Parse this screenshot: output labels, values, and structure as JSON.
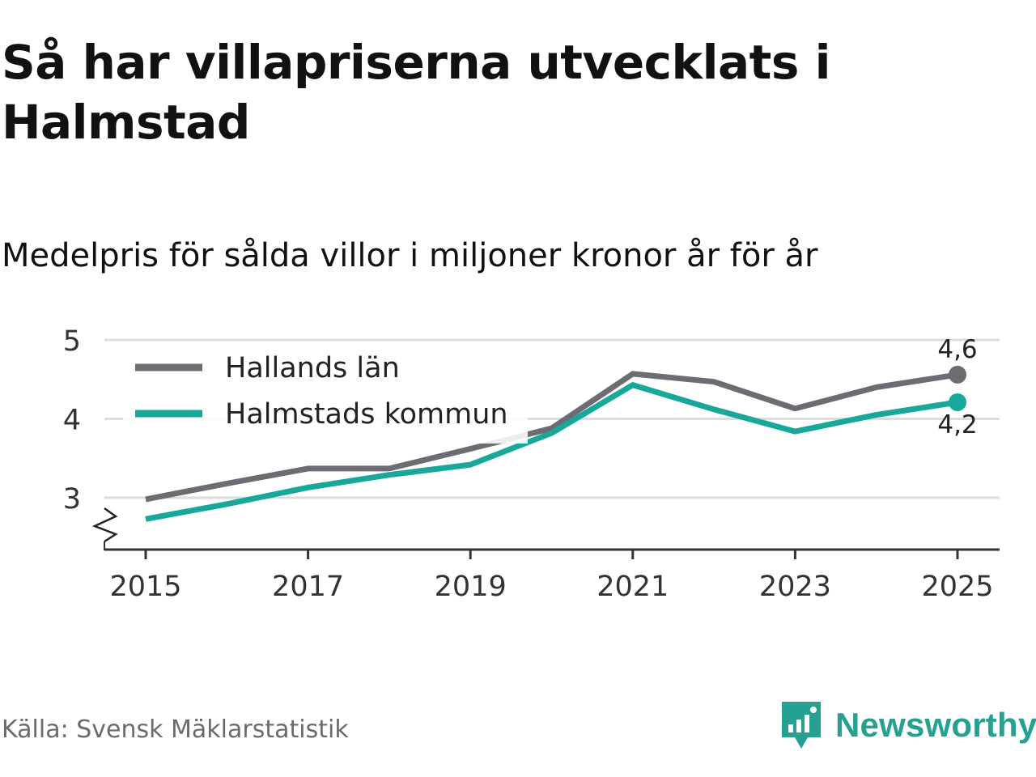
{
  "title": "Så har villapriserna utvecklats i Halmstad",
  "subtitle": "Medelpris för sålda villor i miljoner kronor år för år",
  "source": "Källa: Svensk Mäklarstatistik",
  "brand": "Newsworthy",
  "colors": {
    "series1": "#6d6c72",
    "series2": "#17a89a",
    "grid": "#dddddd",
    "axis": "#333333"
  },
  "chart_data": {
    "type": "line",
    "title": "Så har villapriserna utvecklats i Halmstad",
    "subtitle": "Medelpris för sålda villor i miljoner kronor år för år",
    "xlabel": "",
    "ylabel": "",
    "x": [
      2015,
      2016,
      2017,
      2018,
      2019,
      2020,
      2021,
      2022,
      2023,
      2024,
      2025
    ],
    "x_ticks": [
      "2015",
      "2017",
      "2019",
      "2021",
      "2023",
      "2025"
    ],
    "y_ticks": [
      "3",
      "4",
      "5"
    ],
    "ylim": [
      2.35,
      5
    ],
    "xlim": [
      2014.5,
      2025.5
    ],
    "grid": true,
    "axis_break": true,
    "legend_position": "top-left",
    "series": [
      {
        "name": "Hallands län",
        "values": [
          2.98,
          3.18,
          3.37,
          3.37,
          3.62,
          3.88,
          4.57,
          4.47,
          4.13,
          4.4,
          4.56
        ],
        "end_label": "4,6"
      },
      {
        "name": "Halmstads kommun",
        "values": [
          2.73,
          2.92,
          3.13,
          3.29,
          3.42,
          3.82,
          4.43,
          4.12,
          3.84,
          4.05,
          4.21
        ],
        "end_label": "4,2"
      }
    ]
  }
}
